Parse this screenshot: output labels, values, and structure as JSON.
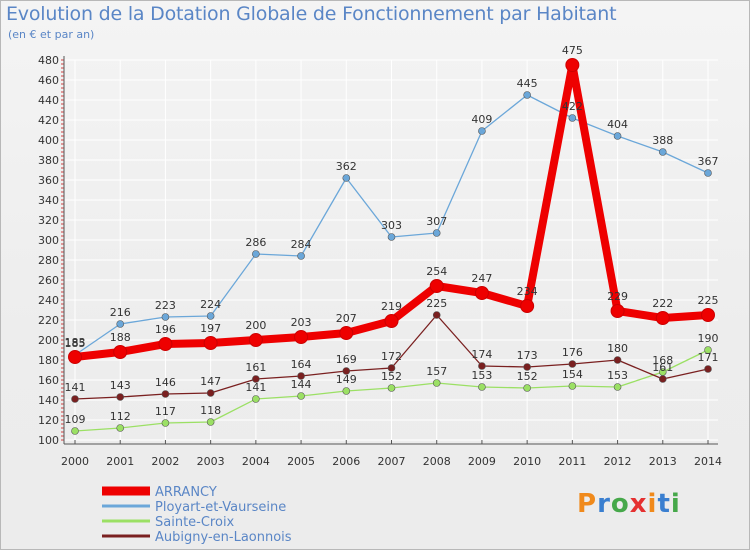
{
  "title": "Evolution de la Dotation Globale de Fonctionnement par Habitant",
  "subtitle": "(en € et par an)",
  "logo": {
    "text": "Proxiti",
    "colors": [
      "#f08a1c",
      "#3a7fd0",
      "#46a84a",
      "#e53030",
      "#f08a1c",
      "#3a7fd0",
      "#46a84a"
    ]
  },
  "chart_data": {
    "type": "line",
    "title": "Evolution de la Dotation Globale de Fonctionnement par Habitant",
    "subtitle": "(en € et par an)",
    "x": [
      "2000",
      "2001",
      "2002",
      "2003",
      "2004",
      "2005",
      "2006",
      "2007",
      "2008",
      "2009",
      "2010",
      "2011",
      "2012",
      "2013",
      "2014"
    ],
    "ylim": [
      100,
      480
    ],
    "yticks": [
      100,
      120,
      140,
      160,
      180,
      200,
      220,
      240,
      260,
      280,
      300,
      320,
      340,
      360,
      380,
      400,
      420,
      440,
      460,
      480
    ],
    "grid": true,
    "legend": "bottom-left",
    "series": [
      {
        "name": "ARRANCY",
        "color": "#ee0000",
        "values": [
          183,
          188,
          196,
          197,
          200,
          203,
          207,
          219,
          254,
          247,
          234,
          475,
          229,
          222,
          225
        ]
      },
      {
        "name": "Ployart-et-Vaurseine",
        "color": "#6ba7d9",
        "values": [
          185,
          216,
          223,
          224,
          286,
          284,
          362,
          303,
          307,
          409,
          445,
          422,
          404,
          388,
          367
        ]
      },
      {
        "name": "Sainte-Croix",
        "color": "#9be064",
        "values": [
          109,
          112,
          117,
          118,
          141,
          144,
          149,
          152,
          157,
          153,
          152,
          154,
          153,
          168,
          190
        ]
      },
      {
        "name": "Aubigny-en-Laonnois",
        "color": "#7a2020",
        "values": [
          141,
          143,
          146,
          147,
          161,
          164,
          169,
          172,
          225,
          174,
          173,
          176,
          180,
          161,
          171
        ]
      }
    ]
  }
}
